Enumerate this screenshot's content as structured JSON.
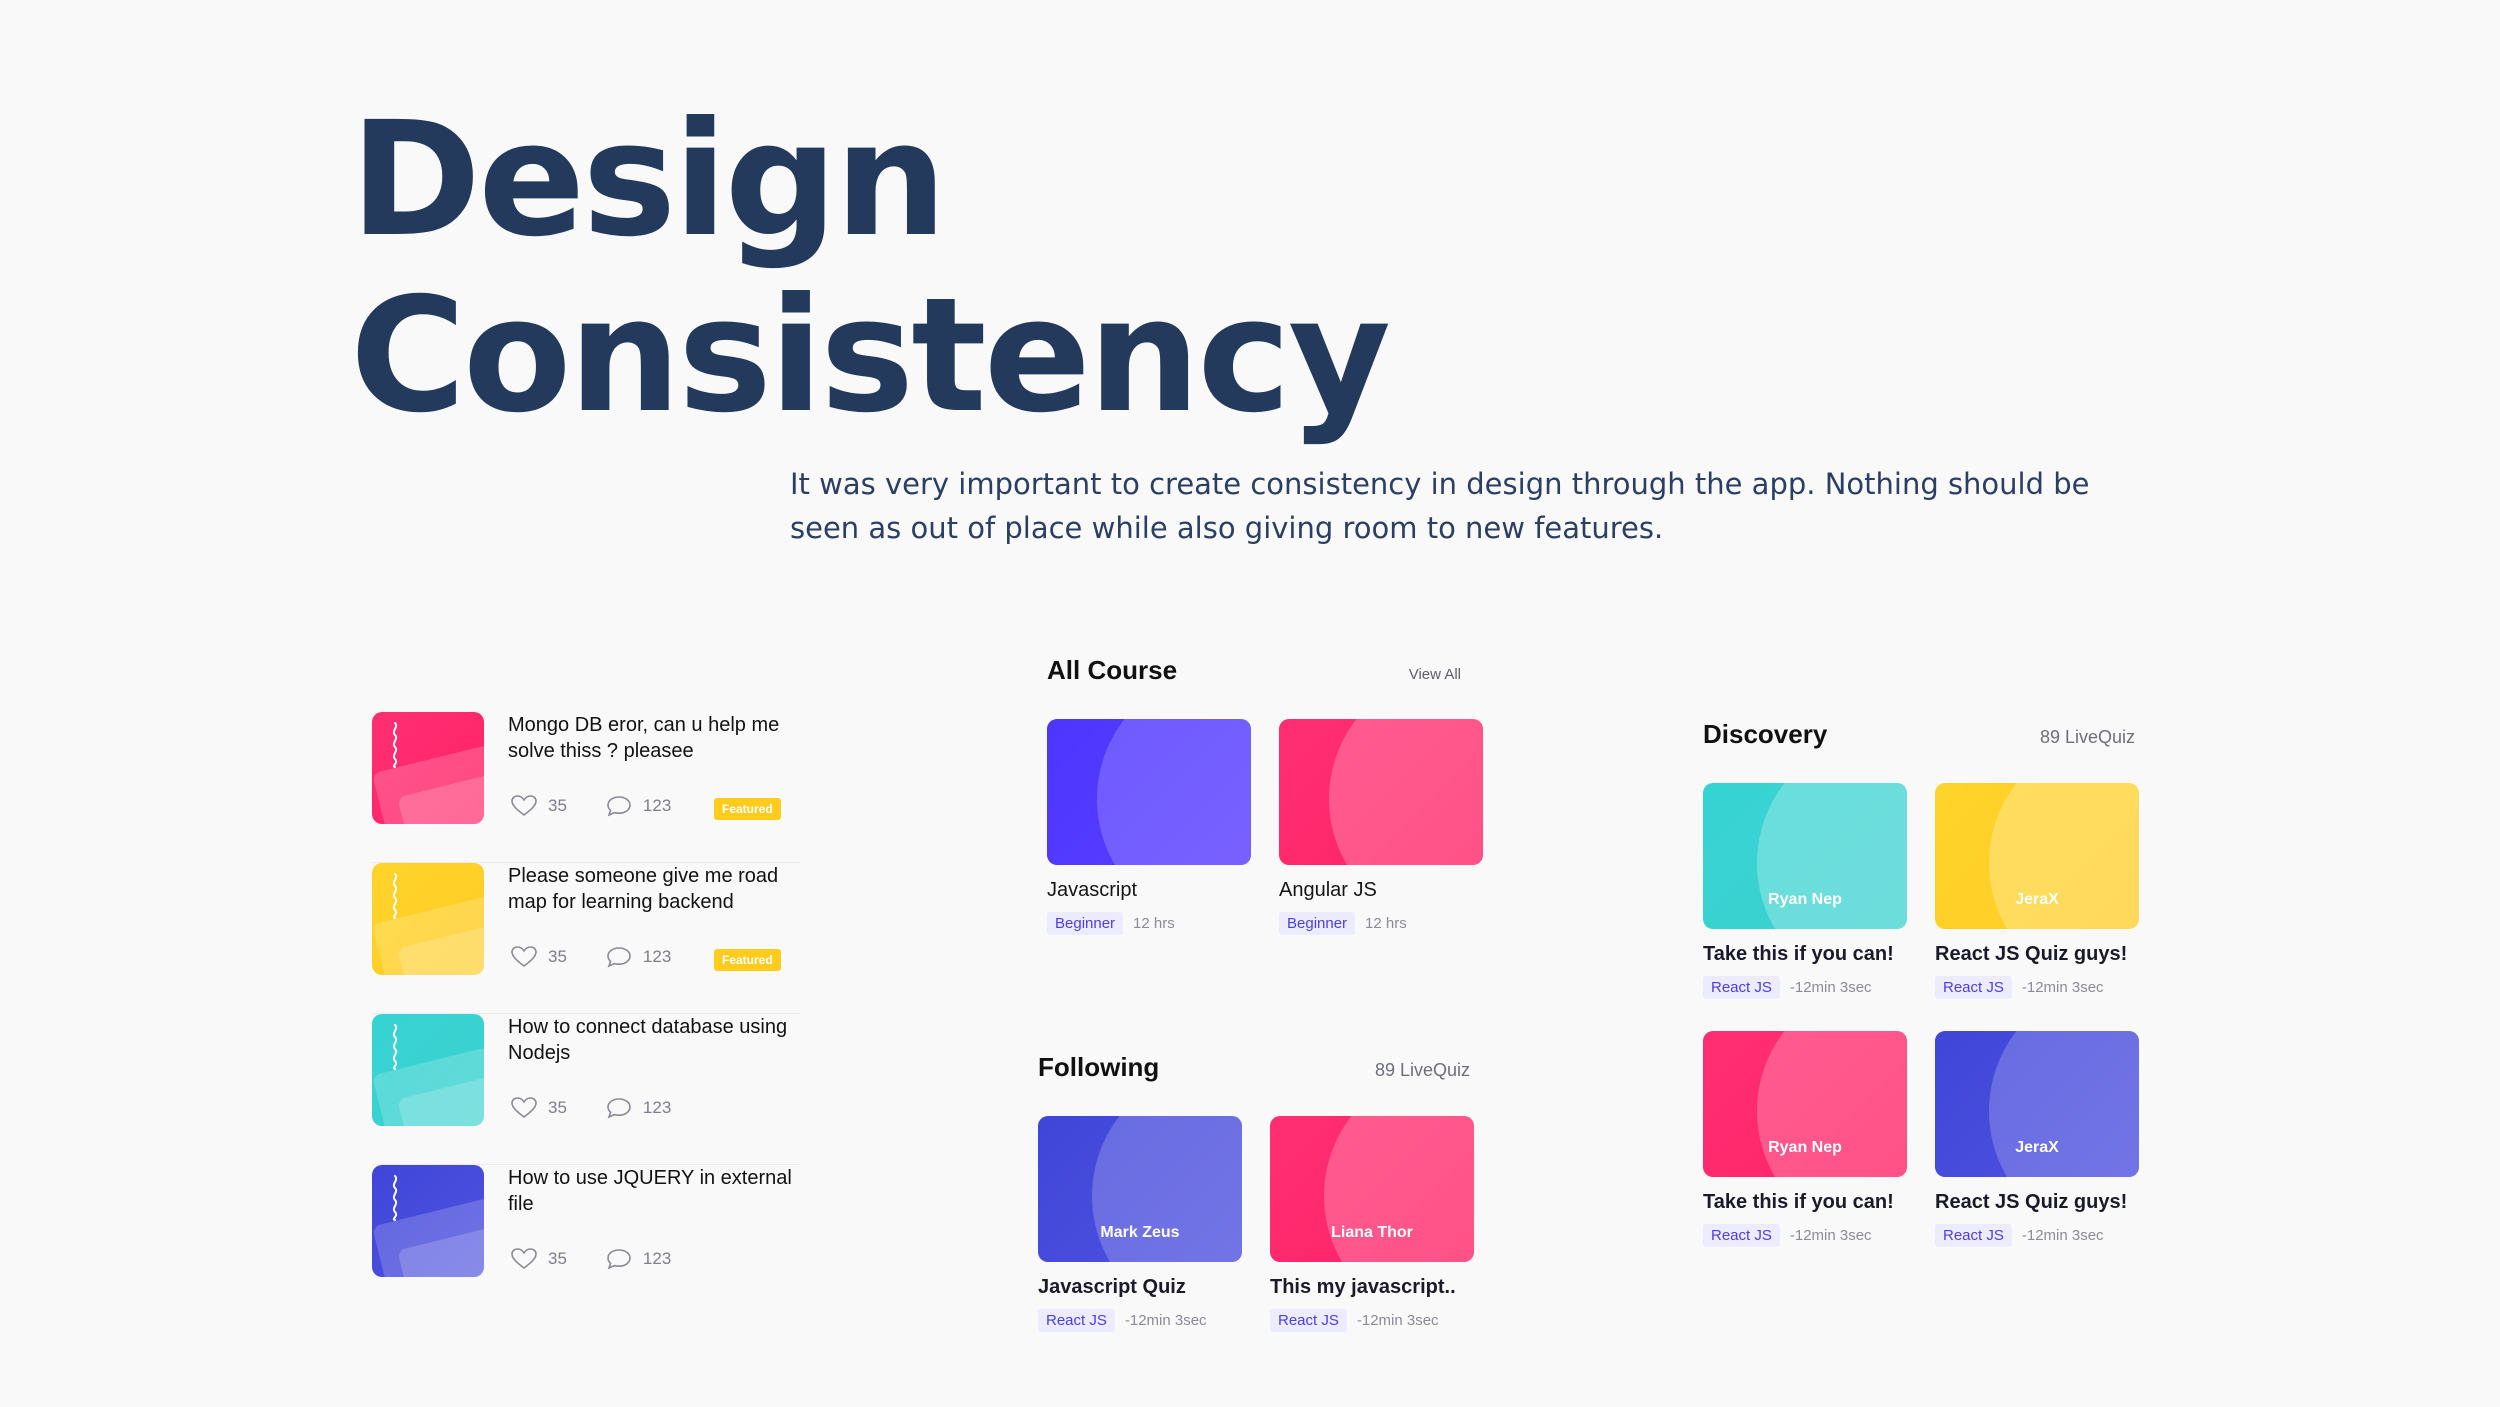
{
  "title_line1": "Design",
  "title_line2": "Consistency",
  "description": "It was very important to create consistency in design through the app. Nothing should be seen as out of place while also giving room to new features.",
  "forum": {
    "items": [
      {
        "title": "Mongo DB eror, can u help me solve thiss ? pleasee",
        "likes": "35",
        "comments": "123",
        "badge": "Featured",
        "color": "pink"
      },
      {
        "title": "Please someone give me road map for learning backend",
        "likes": "35",
        "comments": "123",
        "badge": "Featured",
        "color": "yellow"
      },
      {
        "title": "How to connect database using Nodejs",
        "likes": "35",
        "comments": "123",
        "badge": "",
        "color": "teal"
      },
      {
        "title": "How to use JQUERY in external file",
        "likes": "35",
        "comments": "123",
        "badge": "",
        "color": "indigo"
      }
    ]
  },
  "all_course": {
    "title": "All Course",
    "link": "View All",
    "cards": [
      {
        "title": "Javascript",
        "tag": "Beginner",
        "meta": "12 hrs",
        "color": "violet"
      },
      {
        "title": "Angular JS",
        "tag": "Beginner",
        "meta": "12 hrs",
        "color": "pink"
      }
    ]
  },
  "following": {
    "title": "Following",
    "count": "89 LiveQuiz",
    "cards": [
      {
        "label": "Mark Zeus",
        "title": "Javascript Quiz",
        "tag": "React JS",
        "meta": "-12min 3sec",
        "color": "indigo"
      },
      {
        "label": "Liana Thor",
        "title": "This my javascript..",
        "tag": "React JS",
        "meta": "-12min 3sec",
        "color": "pink"
      }
    ]
  },
  "discovery": {
    "title": "Discovery",
    "count": "89 LiveQuiz",
    "cards": [
      {
        "label": "Ryan Nep",
        "title": "Take this if you can!",
        "tag": "React JS",
        "meta": "-12min 3sec",
        "color": "teal"
      },
      {
        "label": "JeraX",
        "title": "React JS Quiz guys!",
        "tag": "React JS",
        "meta": "-12min 3sec",
        "color": "yellow"
      },
      {
        "label": "Ryan Nep",
        "title": "Take this if you can!",
        "tag": "React JS",
        "meta": "-12min 3sec",
        "color": "pink"
      },
      {
        "label": "JeraX",
        "title": "React JS Quiz guys!",
        "tag": "React JS",
        "meta": "-12min 3sec",
        "color": "indigo"
      }
    ]
  },
  "colors": {
    "title": "#233a5c",
    "pink": "#ff2266",
    "yellow": "#ffcc26",
    "teal": "#3dd2cf",
    "indigo": "#4549db",
    "violet": "#5038ff",
    "featured_badge": "#ffcc1d",
    "tag_bg": "#ecebff"
  }
}
